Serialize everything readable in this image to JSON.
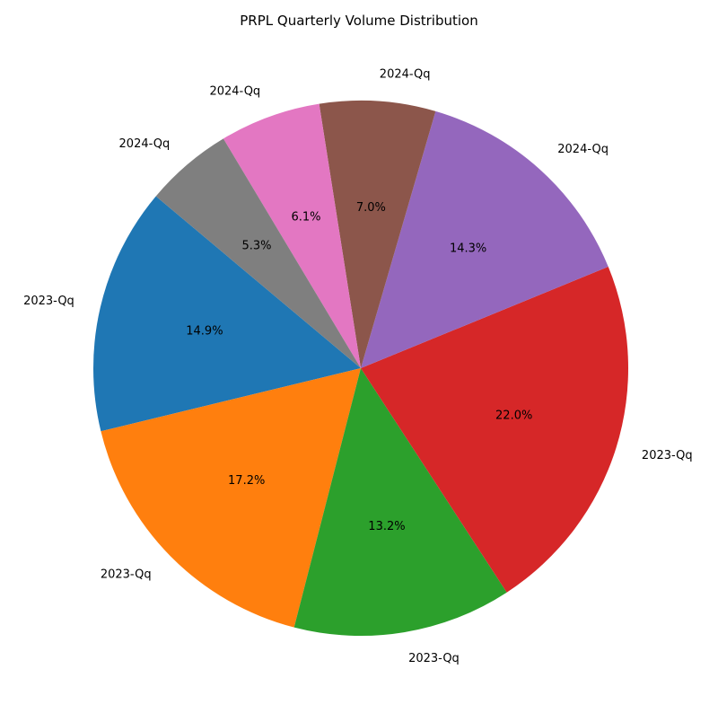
{
  "chart_data": {
    "type": "pie",
    "title": "PRPL Quarterly Volume Distribution",
    "start_angle_deg": 140,
    "direction": "counterclockwise",
    "slices": [
      {
        "label": "2023-Qq",
        "value": 14.9,
        "pct_label": "14.9%",
        "color": "#1f77b4"
      },
      {
        "label": "2023-Qq",
        "value": 17.2,
        "pct_label": "17.2%",
        "color": "#ff7f0e"
      },
      {
        "label": "2023-Qq",
        "value": 13.2,
        "pct_label": "13.2%",
        "color": "#2ca02c"
      },
      {
        "label": "2023-Qq",
        "value": 22.0,
        "pct_label": "22.0%",
        "color": "#d62728"
      },
      {
        "label": "2024-Qq",
        "value": 14.3,
        "pct_label": "14.3%",
        "color": "#9467bd"
      },
      {
        "label": "2024-Qq",
        "value": 7.0,
        "pct_label": "7.0%",
        "color": "#8c564b"
      },
      {
        "label": "2024-Qq",
        "value": 6.1,
        "pct_label": "6.1%",
        "color": "#e377c2"
      },
      {
        "label": "2024-Qq",
        "value": 5.3,
        "pct_label": "5.3%",
        "color": "#7f7f7f"
      }
    ]
  }
}
